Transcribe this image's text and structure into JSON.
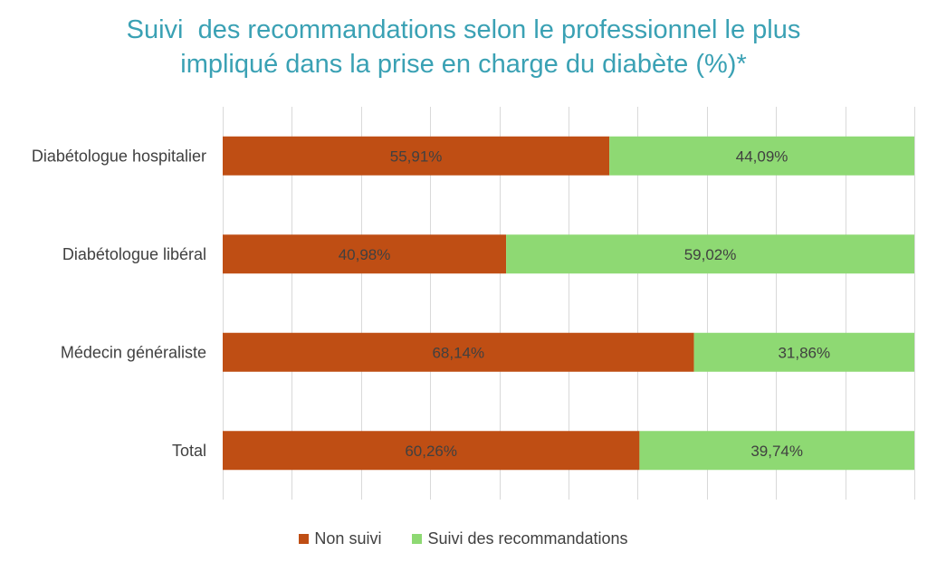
{
  "chart_data": {
    "type": "bar",
    "orientation": "horizontal",
    "stacked": true,
    "title": [
      "Suivi  des recommandations selon le professionnel le plus",
      "impliqué dans la prise en charge du diabète (%)*"
    ],
    "categories": [
      "Diabétologue hospitalier",
      "Diabétologue libéral",
      "Médecin généraliste",
      "Total"
    ],
    "series": [
      {
        "name": "Non suivi",
        "color": "#bf4e14",
        "values": [
          55.91,
          40.98,
          68.14,
          60.26
        ],
        "labels": [
          "55,91%",
          "40,98%",
          "68,14%",
          "60,26%"
        ]
      },
      {
        "name": "Suivi des recommandations",
        "color": "#8ed973",
        "values": [
          44.09,
          59.02,
          31.86,
          39.74
        ],
        "labels": [
          "44,09%",
          "59,02%",
          "31,86%",
          "39,74%"
        ]
      }
    ],
    "xlim": [
      0,
      100
    ],
    "grid": true,
    "legend_position": "bottom",
    "title_color": "#3aa1b4"
  }
}
